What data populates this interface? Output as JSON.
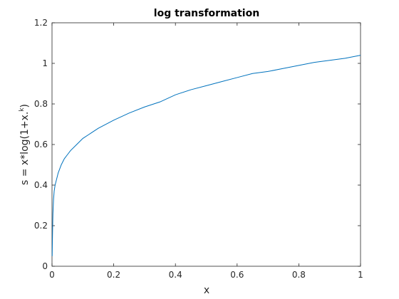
{
  "chart_data": {
    "type": "line",
    "title": "log transformation",
    "xlabel": "x",
    "ylabel": {
      "main": "s = x*log(1+x.",
      "superscript": "k",
      "suffix": ")"
    },
    "xlim": [
      0,
      1
    ],
    "ylim": [
      0,
      1.2
    ],
    "xticks": [
      0,
      0.2,
      0.4,
      0.6,
      0.8,
      1
    ],
    "xtick_labels": [
      "0",
      "0.2",
      "0.4",
      "0.6",
      "0.8",
      "1"
    ],
    "yticks": [
      0,
      0.2,
      0.4,
      0.6,
      0.8,
      1,
      1.2
    ],
    "ytick_labels": [
      "0",
      "0.2",
      "0.4",
      "0.6",
      "0.8",
      "1",
      "1.2"
    ],
    "grid": false,
    "series": [
      {
        "color": "#0072bd",
        "x": [
          0.0005,
          0.001,
          0.002,
          0.003,
          0.005,
          0.007,
          0.01,
          0.015,
          0.02,
          0.03,
          0.04,
          0.05,
          0.06,
          0.08,
          0.1,
          0.12,
          0.15,
          0.2,
          0.25,
          0.3,
          0.35,
          0.4,
          0.45,
          0.5,
          0.55,
          0.6,
          0.65,
          0.7,
          0.75,
          0.8,
          0.85,
          0.9,
          0.95,
          1.0
        ],
        "y": [
          0.05,
          0.1,
          0.19,
          0.26,
          0.33,
          0.37,
          0.4,
          0.43,
          0.46,
          0.5,
          0.53,
          0.55,
          0.57,
          0.6,
          0.63,
          0.65,
          0.68,
          0.72,
          0.755,
          0.785,
          0.81,
          0.845,
          0.87,
          0.89,
          0.91,
          0.93,
          0.95,
          0.96,
          0.975,
          0.99,
          1.005,
          1.015,
          1.025,
          1.04
        ]
      }
    ]
  }
}
